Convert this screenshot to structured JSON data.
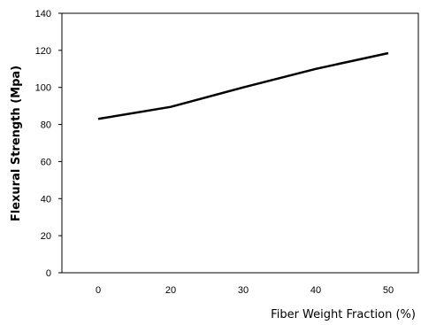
{
  "chart_data": {
    "type": "line",
    "title": "",
    "xlabel": "Fiber Weight Fraction  (%)",
    "ylabel": "Flexural Strength  (Mpa)",
    "categories": [
      "0",
      "20",
      "30",
      "40",
      "50"
    ],
    "series": [
      {
        "values": [
          83,
          89.5,
          100,
          110,
          118.5
        ],
        "color": "#000000"
      }
    ],
    "yticks": [
      "0",
      "20",
      "40",
      "60",
      "80",
      "100",
      "120",
      "140"
    ],
    "ylim": [
      0,
      140
    ],
    "grid": false,
    "legend": "none"
  }
}
